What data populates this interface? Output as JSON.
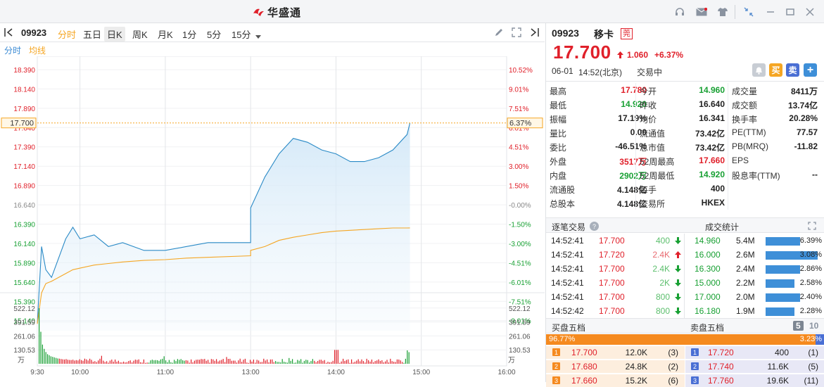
{
  "app": {
    "title": "华盛通"
  },
  "toolbar": {
    "code": "09923",
    "tabs": [
      {
        "label": "分时"
      },
      {
        "label": "五日"
      },
      {
        "label": "日K"
      },
      {
        "label": "周K"
      },
      {
        "label": "月K"
      },
      {
        "label": "1分"
      },
      {
        "label": "5分"
      },
      {
        "label": "15分"
      }
    ]
  },
  "subbar": {
    "minute": "分时",
    "avg": "均线"
  },
  "chart": {
    "price_ticks": [
      "18.390",
      "18.140",
      "17.890",
      "17.640",
      "17.390",
      "17.140",
      "16.890",
      "16.640",
      "16.390",
      "16.140",
      "15.890",
      "15.640",
      "15.390",
      "15.140"
    ],
    "pct_ticks": [
      "10.52%",
      "9.01%",
      "7.51%",
      "6.01%",
      "4.51%",
      "3.00%",
      "1.50%",
      "-0.00%",
      "-1.50%",
      "-3.00%",
      "-4.51%",
      "-6.01%",
      "-7.51%",
      "-9.01%"
    ],
    "current_price_label": "17.700",
    "current_pct_label": "6.37%",
    "vol_ticks": [
      "522.12",
      "391.59",
      "261.06",
      "130.53"
    ],
    "vol_unit": "万",
    "time_ticks": [
      "9:30",
      "10:00",
      "11:00",
      "13:00",
      "14:00",
      "15:00",
      "16:00"
    ]
  },
  "chart_data": {
    "type": "line",
    "x": [
      "09:30",
      "09:33",
      "09:36",
      "09:40",
      "09:45",
      "09:50",
      "09:55",
      "10:00",
      "10:10",
      "10:20",
      "10:30",
      "10:45",
      "11:00",
      "11:15",
      "11:30",
      "12:00",
      "13:00",
      "13:10",
      "13:20",
      "13:30",
      "13:40",
      "13:50",
      "14:00",
      "14:10",
      "14:20",
      "14:30",
      "14:40",
      "14:50",
      "14:52"
    ],
    "series": [
      {
        "name": "分时",
        "values": [
          15.1,
          16.1,
          15.8,
          15.7,
          15.95,
          16.2,
          16.35,
          16.2,
          16.25,
          16.1,
          16.15,
          16.05,
          16.05,
          16.1,
          16.15,
          16.15,
          16.6,
          17.0,
          17.3,
          17.5,
          17.45,
          17.35,
          17.3,
          17.2,
          17.2,
          17.25,
          17.35,
          17.55,
          17.7
        ]
      },
      {
        "name": "均线",
        "values": [
          15.1,
          15.5,
          15.62,
          15.65,
          15.7,
          15.75,
          15.8,
          15.82,
          15.86,
          15.88,
          15.9,
          15.92,
          15.93,
          15.95,
          15.96,
          15.98,
          16.05,
          16.1,
          16.18,
          16.22,
          16.25,
          16.28,
          16.3,
          16.31,
          16.32,
          16.33,
          16.34,
          16.34,
          16.341
        ]
      }
    ],
    "ylim": [
      15.01,
      18.49
    ],
    "volume_ylim": [
      0,
      652.65
    ]
  },
  "stock": {
    "code": "09923",
    "name": "移卡",
    "badge": "莞",
    "price": "17.700",
    "change": "1.060",
    "change_pct": "+6.37%",
    "date": "06-01",
    "time": "14:52(北京)",
    "status": "交易中",
    "buy_label": "买",
    "sell_label": "卖",
    "add_label": "+"
  },
  "quote": [
    [
      {
        "l": "最高",
        "v": "17.780",
        "c": "red"
      },
      {
        "l": "今开",
        "v": "14.960",
        "c": "green"
      },
      {
        "l": "成交量",
        "v": "8411万",
        "c": "dark"
      }
    ],
    [
      {
        "l": "最低",
        "v": "14.920",
        "c": "green"
      },
      {
        "l": "昨收",
        "v": "16.640",
        "c": "dark"
      },
      {
        "l": "成交额",
        "v": "13.74亿",
        "c": "dark"
      }
    ],
    [
      {
        "l": "振幅",
        "v": "17.19%",
        "c": "dark"
      },
      {
        "l": "均价",
        "v": "16.341",
        "c": "dark"
      },
      {
        "l": "换手率",
        "v": "20.28%",
        "c": "dark"
      }
    ],
    [
      {
        "l": "量比",
        "v": "0.00",
        "c": "dark"
      },
      {
        "l": "流通值",
        "v": "73.42亿",
        "c": "dark"
      },
      {
        "l": "PE(TTM)",
        "v": "77.57",
        "c": "dark"
      }
    ],
    [
      {
        "l": "委比",
        "v": "-46.51%",
        "c": "dark"
      },
      {
        "l": "总市值",
        "v": "73.42亿",
        "c": "dark"
      },
      {
        "l": "PB(MRQ)",
        "v": "-11.82",
        "c": "dark"
      }
    ],
    [
      {
        "l": "外盘",
        "v": "3517万",
        "c": "red"
      },
      {
        "l": "52周最高",
        "v": "17.660",
        "c": "red"
      },
      {
        "l": "EPS",
        "v": "",
        "c": "dark"
      }
    ],
    [
      {
        "l": "内盘",
        "v": "2902万",
        "c": "green"
      },
      {
        "l": "52周最低",
        "v": "14.920",
        "c": "green"
      },
      {
        "l": "股息率(TTM)",
        "v": "--",
        "c": "dark"
      }
    ],
    [
      {
        "l": "流通股",
        "v": "4.148亿",
        "c": "dark"
      },
      {
        "l": "每手",
        "v": "400",
        "c": "dark"
      },
      {
        "l": "",
        "v": "",
        "c": "dark"
      }
    ],
    [
      {
        "l": "总股本",
        "v": "4.148亿",
        "c": "dark"
      },
      {
        "l": "交易所",
        "v": "HKEX",
        "c": "dark"
      },
      {
        "l": "",
        "v": "",
        "c": "dark"
      }
    ]
  ],
  "ticks_section": {
    "title": "逐笔交易",
    "stats_title": "成交统计"
  },
  "ticks": [
    {
      "t": "14:52:41",
      "p": "17.700",
      "v": "400",
      "dir": "down"
    },
    {
      "t": "14:52:41",
      "p": "17.720",
      "v": "2.4K",
      "dir": "up"
    },
    {
      "t": "14:52:41",
      "p": "17.700",
      "v": "2.4K",
      "dir": "down"
    },
    {
      "t": "14:52:41",
      "p": "17.700",
      "v": "2K",
      "dir": "down"
    },
    {
      "t": "14:52:41",
      "p": "17.700",
      "v": "800",
      "dir": "down"
    },
    {
      "t": "14:52:42",
      "p": "17.700",
      "v": "800",
      "dir": "down"
    }
  ],
  "stats": [
    {
      "p": "14.960",
      "v": "5.4M",
      "pct": "6.39%",
      "frac": 0.6
    },
    {
      "p": "16.000",
      "v": "2.6M",
      "pct": "3.08%",
      "frac": 0.9
    },
    {
      "p": "16.300",
      "v": "2.4M",
      "pct": "2.86%",
      "frac": 0.6
    },
    {
      "p": "15.000",
      "v": "2.2M",
      "pct": "2.58%",
      "frac": 0.5
    },
    {
      "p": "17.000",
      "v": "2.0M",
      "pct": "2.40%",
      "frac": 0.6
    },
    {
      "p": "16.180",
      "v": "1.9M",
      "pct": "2.28%",
      "frac": 0.5
    }
  ],
  "depth": {
    "buy_title": "买盘五档",
    "sell_title": "卖盘五档",
    "five": "5",
    "ten": "10",
    "buy_pct": "96.77%",
    "sell_pct": "3.23%",
    "buy_frac": 0.9677,
    "bids": [
      {
        "n": "1",
        "p": "17.700",
        "v": "12.0K",
        "c": "(3)"
      },
      {
        "n": "2",
        "p": "17.680",
        "v": "24.8K",
        "c": "(2)"
      },
      {
        "n": "3",
        "p": "17.660",
        "v": "15.2K",
        "c": "(6)"
      }
    ],
    "asks": [
      {
        "n": "1",
        "p": "17.720",
        "v": "400",
        "c": "(1)"
      },
      {
        "n": "2",
        "p": "17.740",
        "v": "11.6K",
        "c": "(5)"
      },
      {
        "n": "3",
        "p": "17.760",
        "v": "19.6K",
        "c": "(11)"
      }
    ]
  }
}
